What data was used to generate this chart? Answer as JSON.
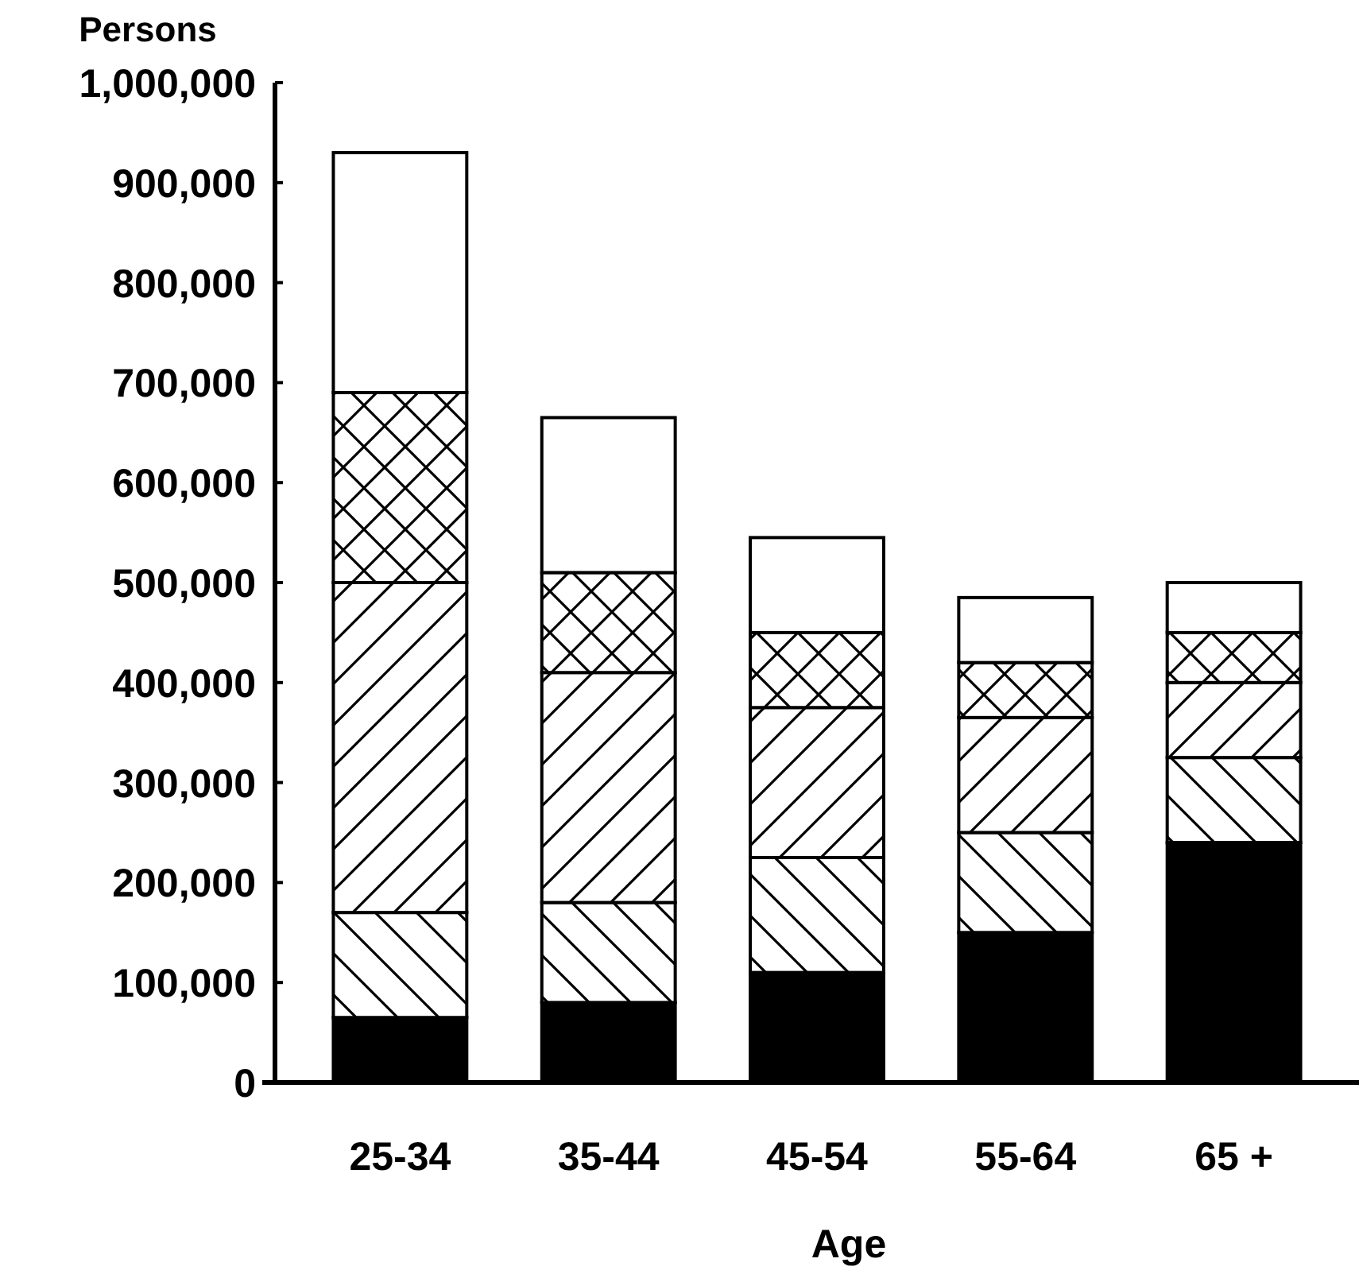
{
  "chart_data": {
    "type": "bar",
    "stacked": true,
    "ylabel": "Persons",
    "xlabel": "Age",
    "categories": [
      "25-34",
      "35-44",
      "45-54",
      "55-64",
      "65 +"
    ],
    "series": [
      {
        "color": "#000000",
        "values": [
          65000,
          80000,
          110000,
          150000,
          240000
        ]
      },
      {
        "color": "#000000",
        "values": [
          105000,
          100000,
          115000,
          100000,
          85000
        ]
      },
      {
        "color": "#000000",
        "values": [
          330000,
          230000,
          150000,
          115000,
          75000
        ]
      },
      {
        "color": "#000000",
        "values": [
          190000,
          100000,
          75000,
          55000,
          50000
        ]
      },
      {
        "color": "#ffffff",
        "values": [
          240000,
          155000,
          95000,
          65000,
          50000
        ]
      }
    ],
    "ylim": [
      0,
      1000000
    ],
    "yticks": [
      {
        "value": 0,
        "label": "0"
      },
      {
        "value": 100000,
        "label": "100,000"
      },
      {
        "value": 200000,
        "label": "200,000"
      },
      {
        "value": 300000,
        "label": "300,000"
      },
      {
        "value": 400000,
        "label": "400,000"
      },
      {
        "value": 500000,
        "label": "500,000"
      },
      {
        "value": 600000,
        "label": "600,000"
      },
      {
        "value": 700000,
        "label": "700,000"
      },
      {
        "value": 800000,
        "label": "800,000"
      },
      {
        "value": 900000,
        "label": "900,000"
      },
      {
        "value": 1000000,
        "label": "1,000,000"
      }
    ],
    "grid": false
  }
}
